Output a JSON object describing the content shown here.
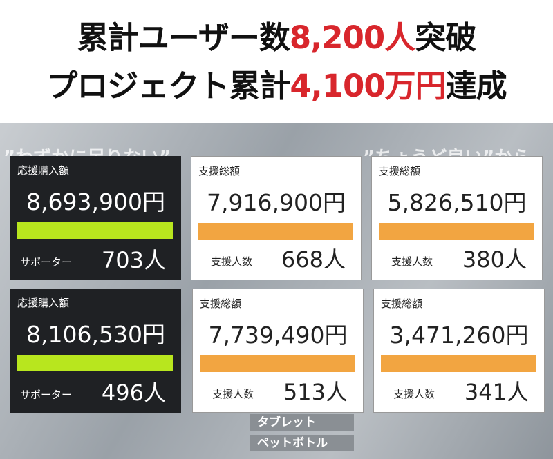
{
  "header": {
    "line1": [
      "累計ユーザー数",
      "8,200人",
      "突破"
    ],
    "line2": [
      "プロジェクト累計",
      "4,100万円",
      "達成"
    ]
  },
  "background": {
    "captions": [
      "”わずかに足りない”",
      "”ちょうど良い”から"
    ],
    "labels": [
      "タブレット",
      "ペットボトル"
    ]
  },
  "cards": [
    {
      "label": "応援購入額",
      "amount": "8,693,900円",
      "footer_label": "サポーター",
      "count": "703人"
    },
    {
      "label": "支援総額",
      "amount": "7,916,900円",
      "footer_label": "支援人数",
      "count": "668人"
    },
    {
      "label": "支援総額",
      "amount": "5,826,510円",
      "footer_label": "支援人数",
      "count": "380人"
    },
    {
      "label": "応援購入額",
      "amount": "8,106,530円",
      "footer_label": "サポーター",
      "count": "496人"
    },
    {
      "label": "支援総額",
      "amount": "7,739,490円",
      "footer_label": "支援人数",
      "count": "513人"
    },
    {
      "label": "支援総額",
      "amount": "3,471,260円",
      "footer_label": "支援人数",
      "count": "341人"
    }
  ]
}
